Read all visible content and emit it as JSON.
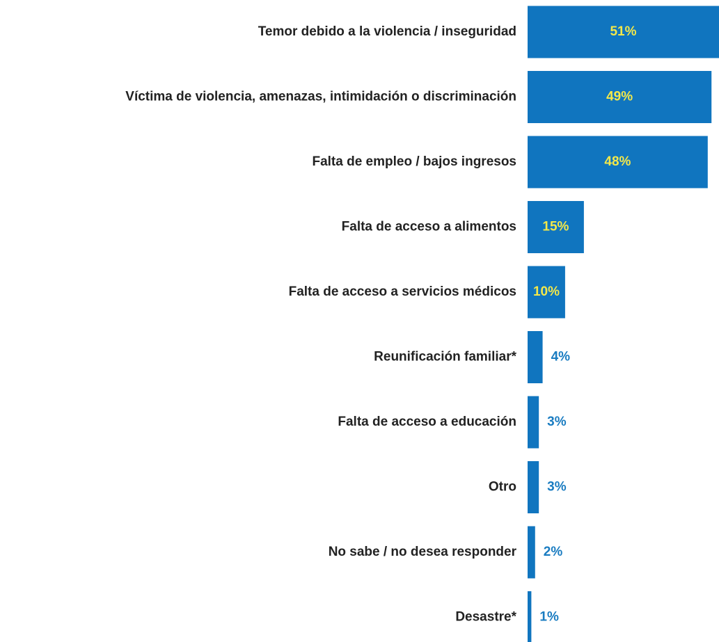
{
  "chart_data": {
    "type": "bar",
    "orientation": "horizontal",
    "categories": [
      "Temor debido a la violencia / inseguridad",
      "Víctima de violencia, amenazas, intimidación o discriminación",
      "Falta de empleo / bajos ingresos",
      "Falta de acceso a alimentos",
      "Falta de acceso a servicios médicos",
      "Reunificación familiar*",
      "Falta de acceso a educación",
      "Otro",
      "No sabe / no desea responder",
      "Desastre*"
    ],
    "values": [
      51,
      49,
      48,
      15,
      10,
      4,
      3,
      3,
      2,
      1
    ],
    "value_labels": [
      "51%",
      "49%",
      "48%",
      "15%",
      "10%",
      "4%",
      "3%",
      "3%",
      "2%",
      "1%"
    ],
    "color": "#1075bf"
  }
}
